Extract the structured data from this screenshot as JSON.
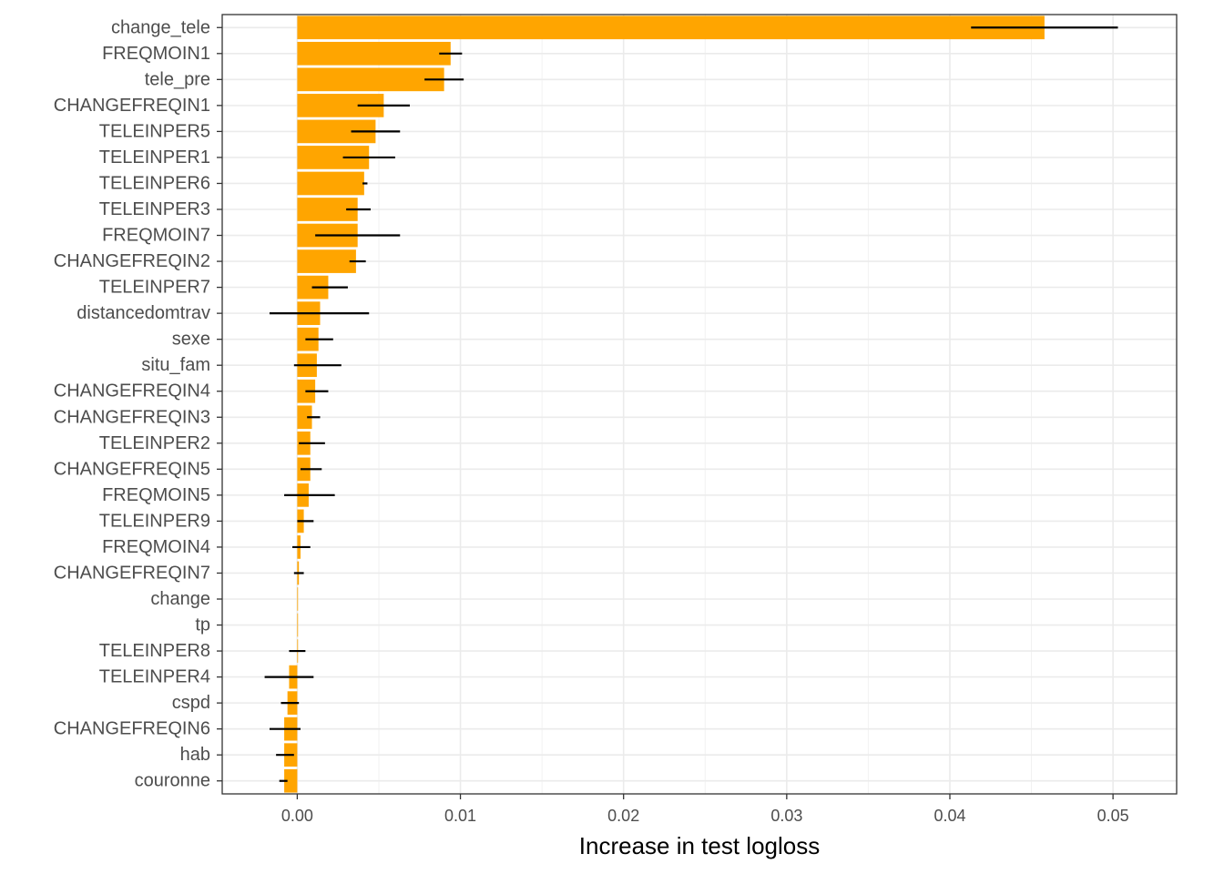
{
  "chart_data": {
    "type": "bar",
    "orientation": "horizontal",
    "title": "",
    "xlabel": "Increase in test logloss",
    "ylabel": "",
    "xlim": [
      -0.0046,
      0.0539
    ],
    "x_ticks": [
      0.0,
      0.01,
      0.02,
      0.03,
      0.04,
      0.05
    ],
    "x_tick_labels": [
      "0.00",
      "0.01",
      "0.02",
      "0.03",
      "0.04",
      "0.05"
    ],
    "grid": true,
    "legend": "none",
    "bar_color": "#FFA500",
    "errorbar_color": "#000000",
    "categories": [
      "change_tele",
      "FREQMOIN1",
      "tele_pre",
      "CHANGEFREQIN1",
      "TELEINPER5",
      "TELEINPER1",
      "TELEINPER6",
      "TELEINPER3",
      "FREQMOIN7",
      "CHANGEFREQIN2",
      "TELEINPER7",
      "distancedomtrav",
      "sexe",
      "situ_fam",
      "CHANGEFREQIN4",
      "CHANGEFREQIN3",
      "TELEINPER2",
      "CHANGEFREQIN5",
      "FREQMOIN5",
      "TELEINPER9",
      "FREQMOIN4",
      "CHANGEFREQIN7",
      "change",
      "tp",
      "TELEINPER8",
      "TELEINPER4",
      "cspd",
      "CHANGEFREQIN6",
      "hab",
      "couronne"
    ],
    "values": [
      0.0458,
      0.0094,
      0.009,
      0.0053,
      0.0048,
      0.0044,
      0.0041,
      0.0037,
      0.0037,
      0.0036,
      0.0019,
      0.0014,
      0.0013,
      0.0012,
      0.0011,
      0.0009,
      0.0008,
      0.0008,
      0.0007,
      0.0004,
      0.0002,
      0.0001,
      0.0,
      0.0,
      0.0,
      -0.0005,
      -0.0006,
      -0.0008,
      -0.0008,
      -0.0008
    ],
    "error_low": [
      0.0413,
      0.0087,
      0.0078,
      0.0037,
      0.0033,
      0.0028,
      0.004,
      0.003,
      0.0011,
      0.0032,
      0.0009,
      -0.0017,
      0.0005,
      -0.0002,
      0.0005,
      0.0006,
      0.0001,
      0.0002,
      -0.0008,
      0.0,
      -0.0003,
      -0.0002,
      0.0,
      0.0,
      -0.0005,
      -0.002,
      -0.001,
      -0.0017,
      -0.0013,
      -0.0011
    ],
    "error_high": [
      0.0503,
      0.0101,
      0.0102,
      0.0069,
      0.0063,
      0.006,
      0.0043,
      0.0045,
      0.0063,
      0.0042,
      0.0031,
      0.0044,
      0.0022,
      0.0027,
      0.0019,
      0.0014,
      0.0017,
      0.0015,
      0.0023,
      0.001,
      0.0008,
      0.0004,
      0.0,
      0.0,
      0.0005,
      0.001,
      0.0001,
      0.0002,
      -0.0002,
      -0.0006
    ]
  }
}
